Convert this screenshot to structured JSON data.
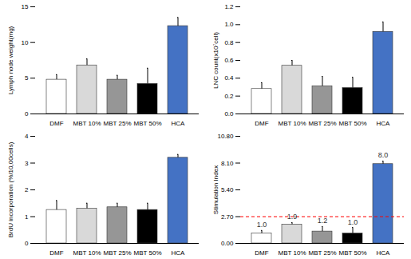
{
  "chart_data": [
    {
      "type": "bar",
      "y_label": "Lymph node weight(mg)",
      "categories": [
        "DMF",
        "MBT 10%",
        "MBT 25%",
        "MBT 50%",
        "HCA"
      ],
      "values": [
        4.8,
        6.8,
        4.8,
        4.2,
        12.3
      ],
      "errors": [
        0.7,
        0.9,
        0.6,
        2.2,
        1.2
      ],
      "colors": [
        "#ffffff",
        "#d9d9d9",
        "#969696",
        "#000000",
        "#4472c4"
      ],
      "ylim": [
        0,
        15
      ],
      "yticks": [
        0,
        5,
        10,
        15
      ]
    },
    {
      "type": "bar",
      "y_label": "LNC count(x10⁷cell)",
      "categories": [
        "DMF",
        "MBT 10%",
        "MBT 25%",
        "MBT 50%",
        "HCA"
      ],
      "values": [
        0.28,
        0.54,
        0.31,
        0.29,
        0.92
      ],
      "errors": [
        0.07,
        0.06,
        0.11,
        0.12,
        0.11
      ],
      "colors": [
        "#ffffff",
        "#d9d9d9",
        "#969696",
        "#000000",
        "#4472c4"
      ],
      "ylim": [
        0,
        1.2
      ],
      "yticks": [
        {
          "value": 0,
          "label": "0.0"
        },
        0.2,
        0.4,
        0.6,
        0.8,
        {
          "value": 1,
          "label": "1.0"
        },
        1.2
      ]
    },
    {
      "type": "bar",
      "y_label": "BrdU incorporation (%/10,00cells)",
      "categories": [
        "DMF",
        "MBT 10%",
        "MBT 25%",
        "MBT 50%",
        "HCA"
      ],
      "values": [
        1.25,
        1.3,
        1.35,
        1.25,
        3.2
      ],
      "errors": [
        0.35,
        0.2,
        0.15,
        0.25,
        0.12
      ],
      "colors": [
        "#ffffff",
        "#d9d9d9",
        "#969696",
        "#000000",
        "#4472c4"
      ],
      "ylim": [
        0,
        4
      ],
      "yticks": [
        0,
        1,
        2,
        3,
        4
      ]
    },
    {
      "type": "bar",
      "y_label": "Stimulation Index",
      "categories": [
        "DMF",
        "MBT 10%",
        "MBT 25%",
        "MBT 50%",
        "HCA"
      ],
      "values": [
        1.0,
        1.9,
        1.2,
        1.0,
        8.0
      ],
      "value_labels": [
        "1.0",
        "1.9",
        "1.2",
        "1.0",
        "8.0"
      ],
      "data_labels": true,
      "errors": [
        0.3,
        0.2,
        0.5,
        0.6,
        0.3
      ],
      "colors": [
        "#ffffff",
        "#d9d9d9",
        "#969696",
        "#000000",
        "#4472c4"
      ],
      "ylim": [
        0,
        10.8
      ],
      "yticks": [
        {
          "value": 0,
          "label": "0.00"
        },
        {
          "value": 2.7,
          "label": "2.70"
        },
        {
          "value": 5.4,
          "label": "5.40"
        },
        {
          "value": 8.1,
          "label": "8.10"
        },
        {
          "value": 10.8,
          "label": "10.80"
        }
      ],
      "reference_line": {
        "value": 2.7,
        "color": "#ff0000",
        "line_style": "dashed"
      }
    }
  ]
}
